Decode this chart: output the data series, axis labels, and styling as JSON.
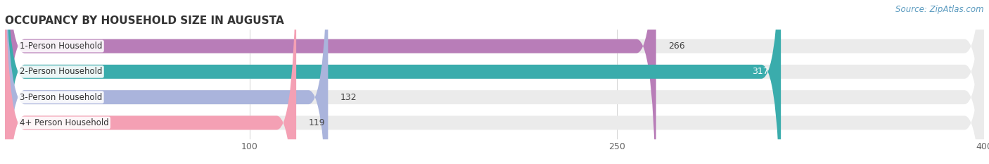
{
  "title": "OCCUPANCY BY HOUSEHOLD SIZE IN AUGUSTA",
  "source": "Source: ZipAtlas.com",
  "categories": [
    "1-Person Household",
    "2-Person Household",
    "3-Person Household",
    "4+ Person Household"
  ],
  "values": [
    266,
    317,
    132,
    119
  ],
  "bar_colors": [
    "#b87db8",
    "#3aacac",
    "#aab4dc",
    "#f4a0b4"
  ],
  "bar_bg_color": "#ebebeb",
  "xlim": [
    0,
    400
  ],
  "xticks": [
    100,
    250,
    400
  ],
  "label_color_inside": [
    "#444444",
    "#ffffff",
    "#444444",
    "#444444"
  ],
  "title_fontsize": 11,
  "source_fontsize": 8.5,
  "tick_fontsize": 9,
  "bar_label_fontsize": 9,
  "cat_label_fontsize": 8.5,
  "background_color": "#ffffff"
}
